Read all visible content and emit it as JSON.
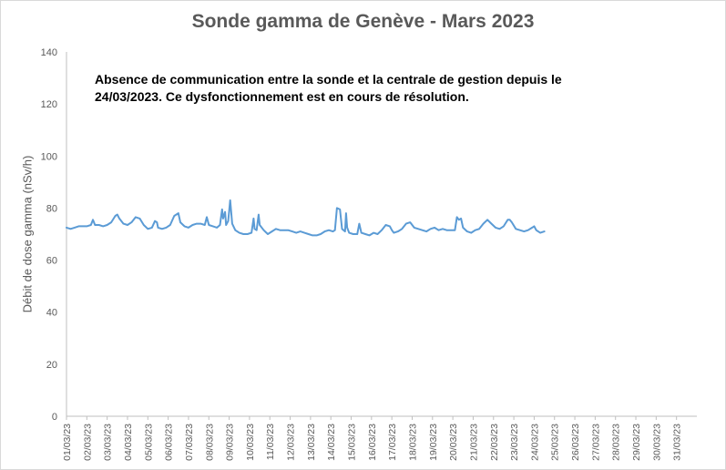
{
  "chart_data": {
    "type": "line",
    "title": "Sonde gamma de Genève - Mars 2023",
    "ylabel": "Débit de dose gamma (nSv/h)",
    "xlabel": "",
    "ylim": [
      0,
      140
    ],
    "yticks": [
      0,
      20,
      40,
      60,
      80,
      100,
      120,
      140
    ],
    "categories": [
      "01/03/23",
      "02/03/23",
      "03/03/23",
      "04/03/23",
      "05/03/23",
      "06/03/23",
      "07/03/23",
      "08/03/23",
      "09/03/23",
      "10/03/23",
      "11/03/23",
      "12/03/23",
      "13/03/23",
      "14/03/23",
      "15/03/23",
      "16/03/23",
      "17/03/23",
      "18/03/23",
      "19/03/23",
      "20/03/23",
      "21/03/23",
      "22/03/23",
      "23/03/23",
      "24/03/23",
      "25/03/23",
      "26/03/23",
      "27/03/23",
      "28/03/23",
      "29/03/23",
      "30/03/23",
      "31/03/23"
    ],
    "grid": false,
    "line_color": "#5b9bd5",
    "annotation": "Absence de communication entre la sonde et la centrale de gestion depuis le 24/03/2023. Ce dysfonctionnement est en cours de résolution.",
    "series": [
      {
        "values": [
          [
            0.0,
            72.5
          ],
          [
            0.2,
            72.0
          ],
          [
            0.4,
            72.5
          ],
          [
            0.6,
            73.0
          ],
          [
            0.8,
            73.0
          ],
          [
            1.0,
            73.0
          ],
          [
            1.2,
            73.5
          ],
          [
            1.3,
            75.5
          ],
          [
            1.4,
            73.5
          ],
          [
            1.6,
            73.5
          ],
          [
            1.8,
            73.0
          ],
          [
            2.0,
            73.5
          ],
          [
            2.2,
            74.5
          ],
          [
            2.4,
            77.0
          ],
          [
            2.5,
            77.5
          ],
          [
            2.6,
            76.0
          ],
          [
            2.8,
            74.0
          ],
          [
            3.0,
            73.5
          ],
          [
            3.2,
            74.5
          ],
          [
            3.4,
            76.5
          ],
          [
            3.6,
            76.0
          ],
          [
            3.8,
            73.5
          ],
          [
            4.0,
            72.0
          ],
          [
            4.2,
            72.5
          ],
          [
            4.35,
            75.0
          ],
          [
            4.45,
            74.5
          ],
          [
            4.5,
            72.5
          ],
          [
            4.7,
            72.0
          ],
          [
            4.9,
            72.5
          ],
          [
            5.1,
            73.5
          ],
          [
            5.3,
            77.0
          ],
          [
            5.5,
            78.0
          ],
          [
            5.6,
            74.5
          ],
          [
            5.8,
            73.0
          ],
          [
            6.0,
            72.5
          ],
          [
            6.2,
            73.5
          ],
          [
            6.4,
            74.0
          ],
          [
            6.6,
            74.0
          ],
          [
            6.8,
            73.5
          ],
          [
            6.9,
            76.5
          ],
          [
            7.0,
            73.5
          ],
          [
            7.2,
            73.0
          ],
          [
            7.4,
            72.5
          ],
          [
            7.55,
            73.5
          ],
          [
            7.65,
            79.5
          ],
          [
            7.7,
            76.0
          ],
          [
            7.8,
            78.5
          ],
          [
            7.85,
            73.5
          ],
          [
            7.95,
            75.0
          ],
          [
            8.05,
            83.0
          ],
          [
            8.15,
            74.0
          ],
          [
            8.3,
            71.5
          ],
          [
            8.5,
            70.5
          ],
          [
            8.7,
            70.0
          ],
          [
            8.9,
            70.0
          ],
          [
            9.1,
            70.5
          ],
          [
            9.2,
            76.0
          ],
          [
            9.25,
            72.0
          ],
          [
            9.35,
            71.5
          ],
          [
            9.45,
            77.5
          ],
          [
            9.5,
            73.5
          ],
          [
            9.7,
            71.5
          ],
          [
            9.9,
            70.0
          ],
          [
            10.1,
            71.0
          ],
          [
            10.3,
            72.0
          ],
          [
            10.5,
            71.5
          ],
          [
            10.7,
            71.5
          ],
          [
            10.9,
            71.5
          ],
          [
            11.1,
            71.0
          ],
          [
            11.3,
            70.5
          ],
          [
            11.5,
            71.0
          ],
          [
            11.7,
            70.5
          ],
          [
            11.9,
            70.0
          ],
          [
            12.1,
            69.5
          ],
          [
            12.3,
            69.5
          ],
          [
            12.5,
            70.0
          ],
          [
            12.7,
            71.0
          ],
          [
            12.9,
            71.5
          ],
          [
            13.1,
            71.0
          ],
          [
            13.2,
            71.5
          ],
          [
            13.3,
            80.0
          ],
          [
            13.45,
            79.5
          ],
          [
            13.55,
            72.0
          ],
          [
            13.7,
            71.0
          ],
          [
            13.75,
            78.0
          ],
          [
            13.8,
            72.5
          ],
          [
            13.9,
            70.5
          ],
          [
            14.1,
            70.0
          ],
          [
            14.3,
            70.0
          ],
          [
            14.4,
            74.0
          ],
          [
            14.5,
            70.5
          ],
          [
            14.7,
            70.0
          ],
          [
            14.9,
            69.5
          ],
          [
            15.1,
            70.5
          ],
          [
            15.3,
            70.0
          ],
          [
            15.5,
            71.5
          ],
          [
            15.7,
            73.5
          ],
          [
            15.9,
            73.0
          ],
          [
            16.0,
            71.5
          ],
          [
            16.1,
            70.5
          ],
          [
            16.3,
            71.0
          ],
          [
            16.5,
            72.0
          ],
          [
            16.7,
            74.0
          ],
          [
            16.9,
            74.5
          ],
          [
            17.1,
            72.5
          ],
          [
            17.3,
            72.0
          ],
          [
            17.5,
            71.5
          ],
          [
            17.7,
            71.0
          ],
          [
            17.9,
            72.0
          ],
          [
            18.1,
            72.5
          ],
          [
            18.3,
            71.5
          ],
          [
            18.5,
            72.0
          ],
          [
            18.7,
            71.5
          ],
          [
            18.9,
            71.5
          ],
          [
            19.1,
            71.5
          ],
          [
            19.2,
            76.5
          ],
          [
            19.3,
            75.5
          ],
          [
            19.4,
            76.0
          ],
          [
            19.5,
            72.5
          ],
          [
            19.7,
            71.0
          ],
          [
            19.9,
            70.5
          ],
          [
            20.1,
            71.5
          ],
          [
            20.3,
            72.0
          ],
          [
            20.5,
            74.0
          ],
          [
            20.7,
            75.5
          ],
          [
            20.9,
            74.0
          ],
          [
            21.1,
            72.5
          ],
          [
            21.3,
            72.0
          ],
          [
            21.5,
            73.0
          ],
          [
            21.7,
            75.5
          ],
          [
            21.8,
            75.5
          ],
          [
            21.9,
            74.5
          ],
          [
            22.1,
            72.0
          ],
          [
            22.3,
            71.5
          ],
          [
            22.5,
            71.0
          ],
          [
            22.7,
            71.5
          ],
          [
            22.9,
            72.5
          ],
          [
            23.0,
            73.0
          ],
          [
            23.1,
            71.5
          ],
          [
            23.3,
            70.5
          ],
          [
            23.5,
            71.0
          ]
        ]
      }
    ]
  }
}
